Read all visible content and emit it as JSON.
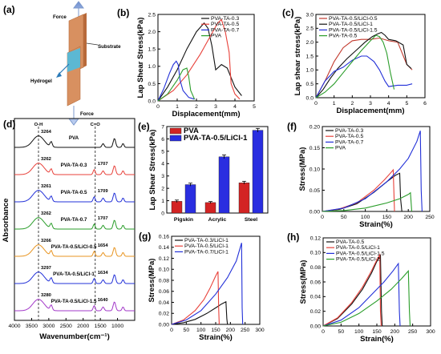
{
  "colors": {
    "black": "#111111",
    "red": "#e8413a",
    "blue": "#2230d8",
    "green": "#2a9d2a",
    "orange": "#e89420",
    "purple": "#a238c8",
    "pink": "#d06070",
    "darkred": "#c23a2e",
    "bar_red": "#d32323",
    "bar_blue": "#2a2ee0"
  },
  "schematic": {
    "label": "(a)",
    "force_top": "Force",
    "force_bottom": "Force",
    "substrate": "Substrate",
    "hydrogel": "Hydrogel"
  },
  "chart_data": [
    {
      "panel": "(b)",
      "type": "line",
      "xlabel": "Displacement(mm)",
      "ylabel": "Lap Shear Stress(kPa)",
      "xlim": [
        0,
        5
      ],
      "ylim": [
        0,
        2.5
      ],
      "xticks": [
        0,
        1,
        2,
        3,
        4,
        5
      ],
      "yticks": [
        0.0,
        0.5,
        1.0,
        1.5,
        2.0,
        2.5
      ],
      "legend_position": "top-right",
      "series": [
        {
          "name": "PVA-TA-0.3",
          "color": "black",
          "x": [
            0,
            0.5,
            1.0,
            1.5,
            2.0,
            2.4,
            2.6,
            2.8,
            3.0,
            3.3,
            3.6,
            4.0,
            4.35
          ],
          "y": [
            0,
            0.4,
            0.9,
            1.5,
            2.0,
            2.25,
            2.1,
            1.6,
            0.9,
            1.05,
            0.95,
            0.4,
            0.15
          ]
        },
        {
          "name": "PVA-TA-0.5",
          "color": "red",
          "x": [
            0,
            0.8,
            1.5,
            2.2,
            2.7,
            3.1,
            3.3,
            3.5,
            3.7,
            3.8,
            4.0,
            4.25
          ],
          "y": [
            0,
            0.3,
            0.75,
            1.35,
            1.85,
            2.25,
            2.35,
            2.0,
            1.4,
            0.5,
            0.2,
            0.05
          ]
        },
        {
          "name": "PVA-TA-0.7",
          "color": "blue",
          "x": [
            0,
            0.3,
            0.6,
            0.8,
            0.95,
            1.05,
            1.15,
            1.3,
            1.6,
            1.9
          ],
          "y": [
            0,
            0.35,
            0.8,
            1.05,
            1.15,
            1.05,
            0.6,
            0.3,
            0.1,
            0.05
          ]
        },
        {
          "name": "PVA",
          "color": "green",
          "x": [
            0,
            0.5,
            1.0,
            1.3,
            1.5,
            1.6,
            1.7,
            1.9
          ],
          "y": [
            0,
            0.2,
            0.6,
            0.9,
            0.95,
            0.7,
            0.3,
            0.05
          ]
        }
      ]
    },
    {
      "panel": "(c)",
      "type": "line",
      "xlabel": "Displacement(mm)",
      "ylabel": "Lap shear stress(kPa)",
      "xlim": [
        0,
        6
      ],
      "ylim": [
        0,
        3.0
      ],
      "xticks": [
        0,
        1,
        2,
        3,
        4,
        5,
        6
      ],
      "yticks": [
        0.0,
        0.5,
        1.0,
        1.5,
        2.0,
        2.5,
        3.0
      ],
      "legend_position": "top-left",
      "series": [
        {
          "name": "PVA-TA-0.5/LiCl-0.5",
          "color": "darkred",
          "x": [
            0,
            0.5,
            1.0,
            1.5,
            2.0,
            2.5,
            3.0,
            3.5,
            4.0,
            4.5,
            5.0,
            5.3
          ],
          "y": [
            0,
            0.6,
            1.3,
            1.8,
            2.05,
            2.1,
            2.1,
            2.15,
            2.05,
            2.0,
            1.2,
            1.0
          ]
        },
        {
          "name": "PVA-TA-0.5/LiCl-1",
          "color": "black",
          "x": [
            0,
            0.4,
            0.8,
            1.2,
            1.7,
            2.2,
            2.7,
            3.1,
            3.4,
            3.6,
            3.8,
            4.0,
            4.4,
            4.8,
            5.0,
            5.25
          ],
          "y": [
            0,
            0.3,
            0.7,
            1.05,
            1.4,
            1.7,
            2.0,
            2.2,
            2.3,
            2.35,
            2.25,
            2.1,
            2.05,
            1.9,
            1.2,
            1.05
          ]
        },
        {
          "name": "PVA-TA-0.5/LiCl-1.5",
          "color": "blue",
          "x": [
            0,
            0.5,
            1.0,
            1.5,
            2.0,
            2.5,
            2.8,
            3.2,
            3.5,
            3.8,
            4.0,
            4.5,
            5.0,
            5.3
          ],
          "y": [
            0,
            0.6,
            0.95,
            1.1,
            1.35,
            1.5,
            1.5,
            1.3,
            1.0,
            0.6,
            0.4,
            0.45,
            0.45,
            0.5
          ]
        },
        {
          "name": "PVA-TA-0.5",
          "color": "green",
          "x": [
            0,
            0.5,
            1.0,
            1.5,
            2.0,
            2.5,
            3.0,
            3.3,
            3.5,
            3.7,
            3.9,
            4.1,
            4.3
          ],
          "y": [
            0,
            0.2,
            0.5,
            0.9,
            1.3,
            1.7,
            2.05,
            2.25,
            2.2,
            2.0,
            1.6,
            0.9,
            0.3
          ]
        }
      ]
    },
    {
      "panel": "(d)",
      "type": "line",
      "xlabel": "Wavenumber(cm⁻¹)",
      "ylabel": "Absorbance",
      "xlim": [
        4000,
        500
      ],
      "xticks": [
        4000,
        3500,
        3000,
        2500,
        2000,
        1500,
        1000
      ],
      "band_labels": [
        "O-H",
        "C=O"
      ],
      "series": [
        {
          "name": "PVA",
          "color": "black",
          "peaks": [
            "3264"
          ]
        },
        {
          "name": "PVA-TA-0.3",
          "color": "red",
          "peaks": [
            "3262",
            "1707"
          ]
        },
        {
          "name": "PVA-TA-0.5",
          "color": "blue",
          "peaks": [
            "3261",
            "1709"
          ]
        },
        {
          "name": "PVA-TA-0.7",
          "color": "green",
          "peaks": [
            "3262",
            "1707"
          ]
        },
        {
          "name": "PVA-TA-0.5/LiCl-0.5",
          "color": "orange",
          "peaks": [
            "3266",
            "1654"
          ]
        },
        {
          "name": "PVA-TA-0.5/LiCl-1",
          "color": "blue",
          "peaks": [
            "3297",
            "1634"
          ]
        },
        {
          "name": "PVA-TA-0.5/LiCl-1.5",
          "color": "purple",
          "peaks": [
            "3280",
            "1640"
          ]
        }
      ]
    },
    {
      "panel": "(e)",
      "type": "bar",
      "ylabel": "Lap Shear Stress(kPa)",
      "ylim": [
        0,
        7
      ],
      "yticks": [
        0,
        1,
        2,
        3,
        4,
        5,
        6,
        7
      ],
      "categories": [
        "Pigskin",
        "Acrylic",
        "Steel"
      ],
      "legend_position": "top-left",
      "series": [
        {
          "name": "PVA",
          "color": "bar_red",
          "values": [
            0.95,
            0.85,
            2.45
          ],
          "errors": [
            0.1,
            0.08,
            0.12
          ]
        },
        {
          "name": "PVA-TA-0.5/LiCl-1",
          "color": "bar_blue",
          "values": [
            2.3,
            4.55,
            6.7
          ],
          "errors": [
            0.12,
            0.15,
            0.15
          ]
        }
      ]
    },
    {
      "panel": "(f)",
      "type": "line",
      "xlabel": "Strain(%)",
      "ylabel": "Stress(MPa)",
      "xlim": [
        0,
        250
      ],
      "ylim": [
        0,
        0.2
      ],
      "xticks": [
        0,
        50,
        100,
        150,
        200,
        250
      ],
      "yticks": [
        0.0,
        0.05,
        0.1,
        0.15,
        0.2
      ],
      "legend_position": "top-left",
      "series": [
        {
          "name": "PVA-TA-0.3",
          "color": "black",
          "x": [
            0,
            40,
            80,
            120,
            150,
            170,
            180,
            182,
            185
          ],
          "y": [
            0,
            0.005,
            0.018,
            0.045,
            0.07,
            0.085,
            0.09,
            0.03,
            0.0
          ]
        },
        {
          "name": "PVA-TA-0.5",
          "color": "red",
          "x": [
            0,
            40,
            80,
            120,
            145,
            160,
            165,
            168
          ],
          "y": [
            0,
            0.006,
            0.02,
            0.05,
            0.075,
            0.092,
            0.098,
            0.0
          ]
        },
        {
          "name": "PVA-TA-0.7",
          "color": "blue",
          "x": [
            0,
            50,
            100,
            150,
            180,
            200,
            220,
            228,
            230,
            232
          ],
          "y": [
            0,
            0.008,
            0.03,
            0.07,
            0.1,
            0.125,
            0.165,
            0.19,
            0.05,
            0.0
          ]
        },
        {
          "name": "PVA",
          "color": "green",
          "x": [
            0,
            50,
            100,
            150,
            180,
            200,
            205,
            208
          ],
          "y": [
            0,
            0.002,
            0.008,
            0.02,
            0.03,
            0.04,
            0.044,
            0.0
          ]
        }
      ]
    },
    {
      "panel": "(g)",
      "type": "line",
      "xlabel": "Strain(%)",
      "ylabel": "Stress(MPa)",
      "xlim": [
        0,
        300
      ],
      "ylim": [
        0,
        0.16
      ],
      "xticks": [
        0,
        50,
        100,
        150,
        200,
        250,
        300
      ],
      "yticks": [
        0.0,
        0.02,
        0.04,
        0.06,
        0.08,
        0.1,
        0.12,
        0.14,
        0.16
      ],
      "legend_position": "top-left",
      "series": [
        {
          "name": "PVA-TA-0.3/LiCl-1",
          "color": "black",
          "x": [
            0,
            40,
            80,
            120,
            150,
            170,
            185,
            188,
            190
          ],
          "y": [
            0,
            0.003,
            0.009,
            0.02,
            0.03,
            0.037,
            0.041,
            0.01,
            0.0
          ]
        },
        {
          "name": "PVA-TA-0.5/LiCl-1",
          "color": "red",
          "x": [
            0,
            40,
            80,
            110,
            130,
            150,
            158,
            160,
            162
          ],
          "y": [
            0,
            0.008,
            0.025,
            0.045,
            0.065,
            0.088,
            0.096,
            0.03,
            0.0
          ]
        },
        {
          "name": "PVA-TA-0.7/LiCl-1",
          "color": "blue",
          "x": [
            0,
            50,
            100,
            150,
            190,
            220,
            238,
            240,
            242
          ],
          "y": [
            0,
            0.008,
            0.025,
            0.055,
            0.085,
            0.115,
            0.148,
            0.03,
            0.0
          ]
        }
      ]
    },
    {
      "panel": "(h)",
      "type": "line",
      "xlabel": "Strain(%)",
      "ylabel": "Stress(MPa)",
      "xlim": [
        0,
        300
      ],
      "ylim": [
        0,
        0.12
      ],
      "xticks": [
        0,
        50,
        100,
        150,
        200,
        250,
        300
      ],
      "yticks": [
        0.0,
        0.02,
        0.04,
        0.06,
        0.08,
        0.1,
        0.12
      ],
      "legend_position": "top-left",
      "series": [
        {
          "name": "PVA-TA-0.5",
          "color": "black",
          "x": [
            0,
            40,
            80,
            110,
            135,
            150,
            160,
            163,
            165
          ],
          "y": [
            0,
            0.01,
            0.03,
            0.05,
            0.072,
            0.088,
            0.096,
            0.02,
            0.0
          ]
        },
        {
          "name": "PVA-TA-0.5/LiCl-1",
          "color": "red",
          "x": [
            0,
            40,
            80,
            110,
            135,
            150,
            158,
            160,
            162
          ],
          "y": [
            0,
            0.011,
            0.032,
            0.053,
            0.075,
            0.09,
            0.097,
            0.02,
            0.0
          ]
        },
        {
          "name": "PVA-TA-0.5/LiCl-1.5",
          "color": "blue",
          "x": [
            0,
            50,
            100,
            140,
            170,
            195,
            210,
            213,
            215
          ],
          "y": [
            0,
            0.008,
            0.025,
            0.045,
            0.06,
            0.075,
            0.085,
            0.02,
            0.0
          ]
        },
        {
          "name": "PVA-TA-0.5/LiCl-2",
          "color": "green",
          "x": [
            0,
            50,
            100,
            150,
            190,
            220,
            238,
            241,
            243
          ],
          "y": [
            0,
            0.005,
            0.017,
            0.034,
            0.05,
            0.065,
            0.075,
            0.02,
            0.0
          ]
        }
      ]
    }
  ]
}
